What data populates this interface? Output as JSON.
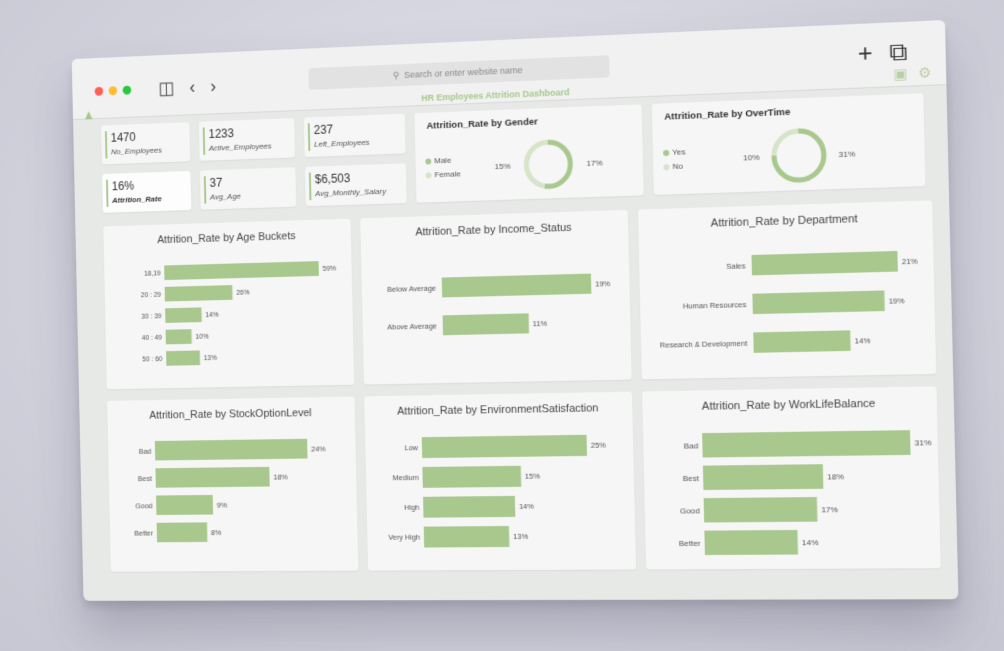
{
  "browser": {
    "url_placeholder": "Search or enter website name",
    "search_icon": "search-icon",
    "new_tab_glyph": "+",
    "tabs_glyph": "⧉",
    "back_glyph": "‹",
    "forward_glyph": "›",
    "sidebar_glyph": "◫"
  },
  "app": {
    "title": "HR Employees Attrition Dashboard",
    "accent": "#a8c88d"
  },
  "kpis": [
    {
      "value": "1470",
      "label": "No_Employees"
    },
    {
      "value": "1233",
      "label": "Active_Employees"
    },
    {
      "value": "237",
      "label": "Left_Employees"
    },
    {
      "value": "16%",
      "label": "Attrition_Rate"
    },
    {
      "value": "37",
      "label": "Avg_Age"
    },
    {
      "value": "$6,503",
      "label": "Avg_Monthly_Salary"
    }
  ],
  "gender": {
    "title": "Attrition_Rate by Gender",
    "legend": [
      "Male",
      "Female"
    ],
    "left_label": "15%",
    "right_label": "17%",
    "values": [
      17,
      15
    ]
  },
  "overtime": {
    "title": "Attrition_Rate by OverTime",
    "legend": [
      "Yes",
      "No"
    ],
    "left_label": "10%",
    "right_label": "31%",
    "values": [
      31,
      10
    ]
  },
  "chart_data": [
    {
      "type": "bar",
      "title": "Attrition_Rate by Age Buckets",
      "categories": [
        "18,19",
        "20 : 29",
        "30 : 39",
        "40 : 49",
        "50 : 60"
      ],
      "values": [
        59,
        26,
        14,
        10,
        13
      ],
      "labels": [
        "59%",
        "26%",
        "14%",
        "10%",
        "13%"
      ]
    },
    {
      "type": "bar",
      "title": "Attrition_Rate by Income_Status",
      "categories": [
        "Below Average",
        "Above Average"
      ],
      "values": [
        19,
        11
      ],
      "labels": [
        "19%",
        "11%"
      ]
    },
    {
      "type": "bar",
      "title": "Attrition_Rate by Department",
      "categories": [
        "Sales",
        "Human Resources",
        "Research & Development"
      ],
      "values": [
        21,
        19,
        14
      ],
      "labels": [
        "21%",
        "19%",
        "14%"
      ]
    },
    {
      "type": "bar",
      "title": "Attrition_Rate by StockOptionLevel",
      "categories": [
        "Bad",
        "Best",
        "Good",
        "Better"
      ],
      "values": [
        24,
        18,
        9,
        8
      ],
      "labels": [
        "24%",
        "18%",
        "9%",
        "8%"
      ]
    },
    {
      "type": "bar",
      "title": "Attrition_Rate by EnvironmentSatisfaction",
      "categories": [
        "Low",
        "Medium",
        "High",
        "Very High"
      ],
      "values": [
        25,
        15,
        14,
        13
      ],
      "labels": [
        "25%",
        "15%",
        "14%",
        "13%"
      ]
    },
    {
      "type": "bar",
      "title": "Attrition_Rate by WorkLifeBalance",
      "categories": [
        "Bad",
        "Best",
        "Good",
        "Better"
      ],
      "values": [
        31,
        18,
        17,
        14
      ],
      "labels": [
        "31%",
        "18%",
        "17%",
        "14%"
      ]
    }
  ]
}
